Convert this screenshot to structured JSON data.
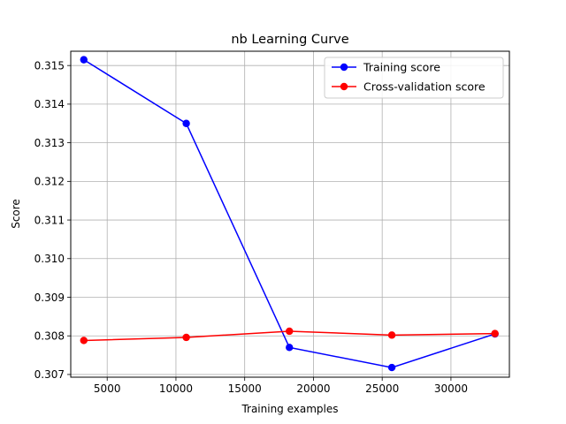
{
  "chart_data": {
    "type": "line",
    "title": "nb Learning Curve",
    "xlabel": "Training examples",
    "ylabel": "Score",
    "xlim": [
      2350,
      34250
    ],
    "ylim": [
      0.30693,
      0.31537
    ],
    "xticks": [
      5000,
      10000,
      15000,
      20000,
      25000,
      30000
    ],
    "yticks": [
      0.307,
      0.308,
      0.309,
      0.31,
      0.311,
      0.312,
      0.313,
      0.314,
      0.315
    ],
    "grid": true,
    "legend_position": "top-right",
    "x": [
      3300,
      10750,
      18250,
      25700,
      33200
    ],
    "series": [
      {
        "name": "Training score",
        "color": "#0000ff",
        "values": [
          0.31515,
          0.3135,
          0.3077,
          0.30718,
          0.30805
        ]
      },
      {
        "name": "Cross-validation score",
        "color": "#ff0000",
        "values": [
          0.30788,
          0.30796,
          0.30812,
          0.30802,
          0.30806
        ]
      }
    ]
  }
}
